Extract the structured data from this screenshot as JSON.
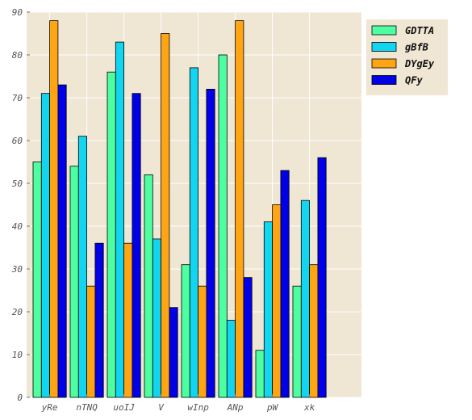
{
  "chart_data": {
    "type": "bar",
    "title": "",
    "xlabel": "",
    "ylabel": "",
    "categories": [
      "yRe",
      "nTNQ",
      "uoIJ",
      "V",
      "wInp",
      "ANp",
      "pW",
      "xk"
    ],
    "ylim": [
      0,
      90
    ],
    "yticks": [
      "0",
      "10",
      "20",
      "30",
      "40",
      "50",
      "60",
      "70",
      "80",
      "90"
    ],
    "grid": true,
    "legend_position": "top-right",
    "series": [
      {
        "name": "GDTTA",
        "color": "#4dffa0",
        "values": [
          55,
          54,
          76,
          52,
          31,
          80,
          11,
          26
        ]
      },
      {
        "name": "gBfB",
        "color": "#14d5f0",
        "values": [
          71,
          61,
          83,
          37,
          77,
          18,
          41,
          46
        ]
      },
      {
        "name": "DYgEy",
        "color": "#ffa514",
        "values": [
          88,
          26,
          36,
          85,
          26,
          88,
          45,
          31
        ]
      },
      {
        "name": "QFy",
        "color": "#0000e6",
        "values": [
          73,
          36,
          71,
          21,
          72,
          28,
          53,
          56
        ]
      }
    ]
  },
  "colors": {
    "plot_background": "#efe6d3",
    "grid": "#ffffff",
    "bar_edge": "#000000"
  }
}
